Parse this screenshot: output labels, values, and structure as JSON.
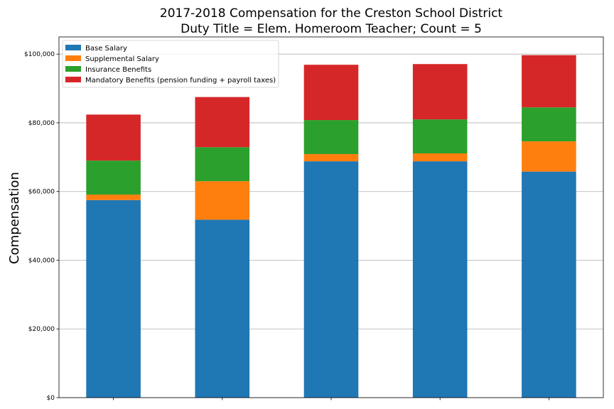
{
  "chart_data": {
    "type": "bar",
    "stacked": true,
    "title": [
      "2017-2018 Compensation for the Creston School District",
      "Duty Title = Elem. Homeroom Teacher; Count = 5"
    ],
    "xlabel": "",
    "ylabel": "Compensation",
    "ylim": [
      0,
      105000
    ],
    "yticks": [
      0,
      20000,
      40000,
      60000,
      80000,
      100000
    ],
    "ytick_labels": [
      "$0",
      "$20,000",
      "$40,000",
      "$60,000",
      "$80,000",
      "$100,000"
    ],
    "grid": "horizontal",
    "legend_position": "top-left",
    "categories": [
      "",
      "",
      "",
      "",
      ""
    ],
    "series": [
      {
        "name": "Base Salary",
        "color": "#1f77b4",
        "values": [
          57500,
          51800,
          68800,
          68800,
          65800
        ]
      },
      {
        "name": "Supplemental Salary",
        "color": "#ff7f0e",
        "values": [
          1600,
          11200,
          2100,
          2300,
          8800
        ]
      },
      {
        "name": "Insurance Benefits",
        "color": "#2ca02c",
        "values": [
          9900,
          9900,
          9900,
          9900,
          9900
        ]
      },
      {
        "name": "Mandatory Benefits (pension funding + payroll taxes)",
        "color": "#d62728",
        "values": [
          13400,
          14600,
          16100,
          16100,
          15200
        ]
      }
    ]
  }
}
